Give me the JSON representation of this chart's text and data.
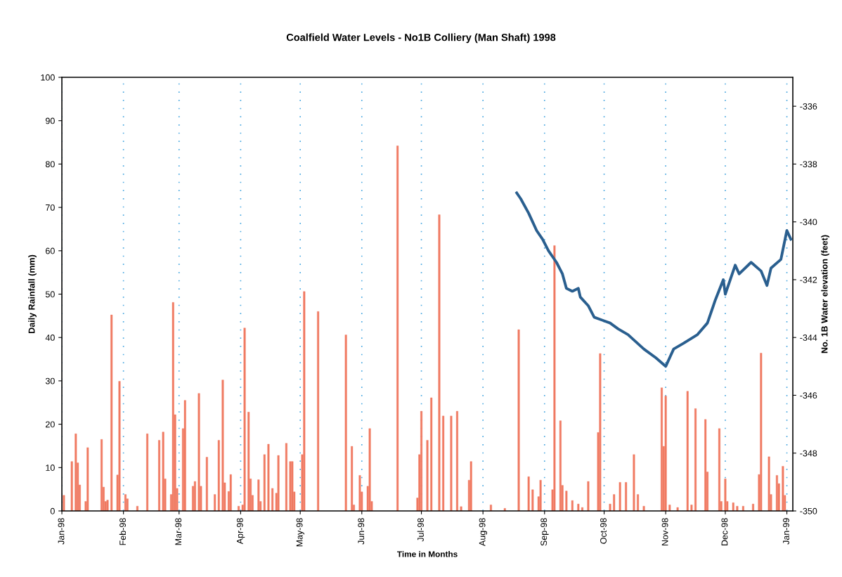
{
  "chart_data": {
    "type": "bar",
    "title": "Coalfield Water Levels - No1B Colliery (Man Shaft) 1998",
    "xlabel": "Time in Months",
    "ylabel": "Daily Rainfall (mm)",
    "y2label": "No. 1B Water elevation (feet)",
    "xlim": [
      "1998-01-01",
      "1999-01-04"
    ],
    "xticks": [
      {
        "value": "1998-01-01",
        "label": "Jan-98"
      },
      {
        "value": "1998-02-01",
        "label": "Feb-98"
      },
      {
        "value": "1998-03-01",
        "label": "Mar-98"
      },
      {
        "value": "1998-04-01",
        "label": "Apr-98"
      },
      {
        "value": "1998-05-01",
        "label": "May-98"
      },
      {
        "value": "1998-06-01",
        "label": "Jun-98"
      },
      {
        "value": "1998-07-01",
        "label": "Jul-98"
      },
      {
        "value": "1998-08-01",
        "label": "Aug-98"
      },
      {
        "value": "1998-09-01",
        "label": "Sep-98"
      },
      {
        "value": "1998-10-01",
        "label": "Oct-98"
      },
      {
        "value": "1998-11-01",
        "label": "Nov-98"
      },
      {
        "value": "1998-12-01",
        "label": "Dec-98"
      },
      {
        "value": "1999-01-01",
        "label": "Jan-99"
      }
    ],
    "ylim": [
      0,
      100
    ],
    "yticks": [
      0,
      10,
      20,
      30,
      40,
      50,
      60,
      70,
      80,
      90,
      100
    ],
    "y2lim": [
      -350,
      -335
    ],
    "y2ticks": [
      -350,
      -348,
      -346,
      -344,
      -342,
      -340,
      -338,
      -336
    ],
    "grid": "x",
    "series": [
      {
        "color": "#f07a62",
        "x": [
          "1998-01-02",
          "1998-01-06",
          "1998-01-08",
          "1998-01-09",
          "1998-01-10",
          "1998-01-13",
          "1998-01-14",
          "1998-01-21",
          "1998-01-22",
          "1998-01-23",
          "1998-01-24",
          "1998-01-26",
          "1998-01-29",
          "1998-01-30",
          "1998-02-02",
          "1998-02-03",
          "1998-02-08",
          "1998-02-13",
          "1998-02-19",
          "1998-02-21",
          "1998-02-22",
          "1998-02-25",
          "1998-02-26",
          "1998-02-27",
          "1998-02-28",
          "1998-03-03",
          "1998-03-04",
          "1998-03-08",
          "1998-03-09",
          "1998-03-11",
          "1998-03-12",
          "1998-03-15",
          "1998-03-19",
          "1998-03-21",
          "1998-03-23",
          "1998-03-24",
          "1998-03-26",
          "1998-03-27",
          "1998-03-31",
          "1998-04-02",
          "1998-04-03",
          "1998-04-05",
          "1998-04-06",
          "1998-04-07",
          "1998-04-10",
          "1998-04-11",
          "1998-04-13",
          "1998-04-15",
          "1998-04-17",
          "1998-04-19",
          "1998-04-20",
          "1998-04-24",
          "1998-04-26",
          "1998-04-27",
          "1998-04-28",
          "1998-05-02",
          "1998-05-03",
          "1998-05-10",
          "1998-05-24",
          "1998-05-27",
          "1998-05-28",
          "1998-05-31",
          "1998-06-01",
          "1998-06-04",
          "1998-06-05",
          "1998-06-06",
          "1998-06-19",
          "1998-06-29",
          "1998-06-30",
          "1998-07-01",
          "1998-07-04",
          "1998-07-06",
          "1998-07-10",
          "1998-07-12",
          "1998-07-16",
          "1998-07-19",
          "1998-07-21",
          "1998-07-25",
          "1998-07-26",
          "1998-08-05",
          "1998-08-12",
          "1998-08-19",
          "1998-08-24",
          "1998-08-26",
          "1998-08-29",
          "1998-08-30",
          "1998-09-05",
          "1998-09-06",
          "1998-09-09",
          "1998-09-10",
          "1998-09-12",
          "1998-09-15",
          "1998-09-18",
          "1998-09-20",
          "1998-09-23",
          "1998-09-28",
          "1998-09-29",
          "1998-10-04",
          "1998-10-06",
          "1998-10-09",
          "1998-10-12",
          "1998-10-16",
          "1998-10-18",
          "1998-10-21",
          "1998-10-30",
          "1998-10-31",
          "1998-11-01",
          "1998-11-03",
          "1998-11-07",
          "1998-11-12",
          "1998-11-14",
          "1998-11-16",
          "1998-11-21",
          "1998-11-22",
          "1998-11-28",
          "1998-11-29",
          "1998-12-01",
          "1998-12-02",
          "1998-12-05",
          "1998-12-07",
          "1998-12-10",
          "1998-12-15",
          "1998-12-18",
          "1998-12-19",
          "1998-12-23",
          "1998-12-24",
          "1998-12-27",
          "1998-12-28",
          "1998-12-30",
          "1998-12-31"
        ],
        "values": [
          3.6,
          11.4,
          17.8,
          11.1,
          6,
          2.2,
          14.6,
          16.5,
          5.5,
          2.2,
          2.5,
          45.2,
          8.3,
          29.9,
          3.8,
          2.8,
          1.1,
          17.8,
          16.3,
          18.2,
          7.4,
          3.8,
          48.1,
          22.2,
          5.2,
          19,
          25.5,
          5.7,
          6.8,
          27.1,
          5.7,
          12.4,
          3.8,
          16.3,
          30.2,
          6.5,
          4.5,
          8.4,
          1.1,
          1.4,
          42.2,
          22.8,
          7.4,
          3.6,
          7.2,
          2.2,
          13,
          15.4,
          5.2,
          4.1,
          12.8,
          15.6,
          11.4,
          11.4,
          4.4,
          13,
          50.6,
          46,
          40.6,
          14.9,
          1.4,
          8.2,
          4.4,
          5.7,
          19,
          2.2,
          84.2,
          3,
          13,
          23,
          16.3,
          26.1,
          68.3,
          21.9,
          21.9,
          23,
          1,
          7.1,
          11.4,
          1.4,
          0.6,
          41.8,
          7.9,
          4.9,
          3.3,
          7.1,
          4.9,
          61.2,
          20.8,
          5.9,
          4.6,
          2.4,
          1.6,
          0.8,
          6.8,
          18.1,
          36.3,
          1.6,
          3.8,
          6.6,
          6.6,
          13,
          3.8,
          1.1,
          28.4,
          14.9,
          26.5,
          1.4,
          0.8,
          27.6,
          1.4,
          23.6,
          21.1,
          9,
          19,
          2.2,
          7.4,
          2.2,
          1.9,
          1.1,
          1.1,
          1.6,
          8.4,
          36.4,
          12.5,
          3.8,
          8.2,
          6.3,
          10.3,
          3.6
        ]
      },
      {
        "type": "line",
        "axis": "y2",
        "color": "#2a5f8f",
        "marker": "none",
        "line_style": "solid",
        "x": [
          "1998-08-18",
          "1998-08-20",
          "1998-08-24",
          "1998-08-28",
          "1998-08-31",
          "1998-09-03",
          "1998-09-07",
          "1998-09-10",
          "1998-09-12",
          "1998-09-15",
          "1998-09-18",
          "1998-09-19",
          "1998-09-23",
          "1998-09-26",
          "1998-09-30",
          "1998-10-04",
          "1998-10-08",
          "1998-10-13",
          "1998-10-21",
          "1998-10-27",
          "1998-11-01",
          "1998-11-05",
          "1998-11-10",
          "1998-11-17",
          "1998-11-22",
          "1998-11-26",
          "1998-11-30",
          "1998-12-01",
          "1998-12-06",
          "1998-12-08",
          "1998-12-14",
          "1998-12-19",
          "1998-12-22",
          "1998-12-24",
          "1998-12-29",
          "1999-01-01",
          "1999-01-03"
        ],
        "values": [
          -339.0,
          -339.2,
          -339.7,
          -340.3,
          -340.6,
          -341.0,
          -341.4,
          -341.8,
          -342.3,
          -342.4,
          -342.3,
          -342.6,
          -342.9,
          -343.3,
          -343.4,
          -343.5,
          -343.7,
          -343.9,
          -344.4,
          -344.7,
          -345.0,
          -344.4,
          -344.2,
          -343.9,
          -343.5,
          -342.7,
          -342.0,
          -342.5,
          -341.5,
          -341.8,
          -341.4,
          -341.7,
          -342.2,
          -341.6,
          -341.3,
          -340.3,
          -340.6
        ]
      }
    ]
  }
}
